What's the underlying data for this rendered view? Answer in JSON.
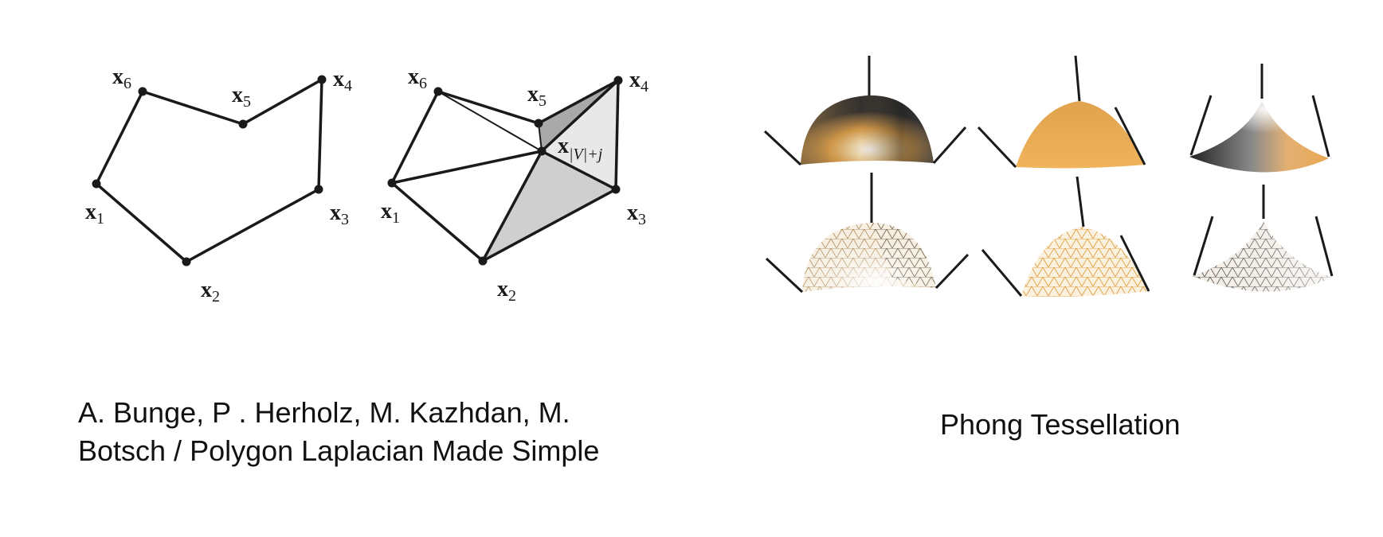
{
  "polygon_figure": {
    "vertex_labels": [
      "x",
      "x",
      "x",
      "x",
      "x",
      "x"
    ],
    "vertex_subscripts": [
      "1",
      "2",
      "3",
      "4",
      "5",
      "6"
    ],
    "virtual_vertex_label": "x",
    "virtual_vertex_subscript": "|V|+j"
  },
  "phong_figure": {
    "colors": {
      "gold": "#e7ab52",
      "dark": "#2a2a2a",
      "highlight": "#ffffff"
    }
  },
  "captions": {
    "left_line1": "A. Bunge, P . Herholz, M. Kazhdan, M.",
    "left_line2": "Botsch / Polygon Laplacian Made Simple",
    "right": "Phong Tessellation"
  }
}
